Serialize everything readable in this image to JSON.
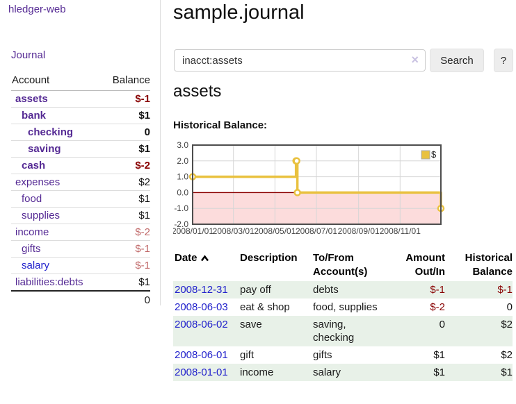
{
  "app": {
    "brand": "hledger-web",
    "nav_journal": "Journal"
  },
  "sidebar": {
    "header": {
      "account": "Account",
      "balance": "Balance"
    },
    "rows": [
      {
        "name": "assets",
        "balance": "$-1",
        "depth": 1,
        "bold": true,
        "balance_tone": "neg",
        "link_tone": "purple"
      },
      {
        "name": "bank",
        "balance": "$1",
        "depth": 2,
        "bold": true,
        "balance_tone": "pos",
        "link_tone": "purple"
      },
      {
        "name": "checking",
        "balance": "0",
        "depth": 3,
        "bold": true,
        "balance_tone": "pos",
        "link_tone": "purple"
      },
      {
        "name": "saving",
        "balance": "$1",
        "depth": 3,
        "bold": true,
        "balance_tone": "pos",
        "link_tone": "purple"
      },
      {
        "name": "cash",
        "balance": "$-2",
        "depth": 2,
        "bold": true,
        "balance_tone": "neg",
        "link_tone": "purple"
      },
      {
        "name": "expenses",
        "balance": "$2",
        "depth": 1,
        "bold": false,
        "balance_tone": "pos",
        "link_tone": "purple"
      },
      {
        "name": "food",
        "balance": "$1",
        "depth": 2,
        "bold": false,
        "balance_tone": "pos",
        "link_tone": "purple"
      },
      {
        "name": "supplies",
        "balance": "$1",
        "depth": 2,
        "bold": false,
        "balance_tone": "pos",
        "link_tone": "purple"
      },
      {
        "name": "income",
        "balance": "$-2",
        "depth": 1,
        "bold": false,
        "balance_tone": "negdim",
        "link_tone": "purple"
      },
      {
        "name": "gifts",
        "balance": "$-1",
        "depth": 2,
        "bold": false,
        "balance_tone": "negdim",
        "link_tone": "purple"
      },
      {
        "name": "salary",
        "balance": "$-1",
        "depth": 2,
        "bold": false,
        "balance_tone": "negdim",
        "link_tone": "blue"
      },
      {
        "name": "liabilities:debts",
        "balance": "$1",
        "depth": 1,
        "bold": false,
        "balance_tone": "pos",
        "link_tone": "purple"
      }
    ],
    "total": "0"
  },
  "header": {
    "title": "sample.journal"
  },
  "search": {
    "value": "inacct:assets",
    "clear_icon": "×",
    "button": "Search",
    "help": "?"
  },
  "main": {
    "account_title": "assets",
    "chart_label": "Historical Balance:"
  },
  "chart_data": {
    "type": "line",
    "style": "step",
    "title": "Historical Balance",
    "series": [
      {
        "name": "$",
        "color": "#e9c13f",
        "points": [
          [
            "2008-01-01",
            1
          ],
          [
            "2008-06-01",
            2
          ],
          [
            "2008-06-02",
            2
          ],
          [
            "2008-06-03",
            0
          ],
          [
            "2008-12-31",
            -1
          ]
        ]
      }
    ],
    "x_ticks": [
      "2008/01/01",
      "2008/03/01",
      "2008/05/01",
      "2008/07/01",
      "2008/09/01",
      "2008/11/01"
    ],
    "y_ticks": [
      3.0,
      2.0,
      1.0,
      0.0,
      -1.0,
      -2.0
    ],
    "ylim": [
      -2,
      3
    ],
    "xlim": [
      "2008-01-01",
      "2008-12-31"
    ],
    "grid": true,
    "legend_position": "top-right",
    "negative_region_fill": "#fcdcdc",
    "zero_line_color": "#8b0000",
    "axis_text_color": "#444444",
    "border_color": "#4d4d4d"
  },
  "register": {
    "headers": {
      "date": "Date",
      "description": "Description",
      "accounts": "To/From Account(s)",
      "amount": "Amount Out/In",
      "balance": "Historical Balance"
    },
    "rows": [
      {
        "date": "2008-12-31",
        "description": "pay off",
        "accounts": "debts",
        "amount": "$-1",
        "amount_tone": "neg",
        "balance": "$-1",
        "balance_tone": "neg"
      },
      {
        "date": "2008-06-03",
        "description": "eat & shop",
        "accounts": "food, supplies",
        "amount": "$-2",
        "amount_tone": "neg",
        "balance": "0",
        "balance_tone": "pos"
      },
      {
        "date": "2008-06-02",
        "description": "save",
        "accounts": "saving, checking",
        "amount": "0",
        "amount_tone": "pos",
        "balance": "$2",
        "balance_tone": "pos"
      },
      {
        "date": "2008-06-01",
        "description": "gift",
        "accounts": "gifts",
        "amount": "$1",
        "amount_tone": "pos",
        "balance": "$2",
        "balance_tone": "pos"
      },
      {
        "date": "2008-01-01",
        "description": "income",
        "accounts": "salary",
        "amount": "$1",
        "amount_tone": "pos",
        "balance": "$1",
        "balance_tone": "pos"
      }
    ]
  }
}
